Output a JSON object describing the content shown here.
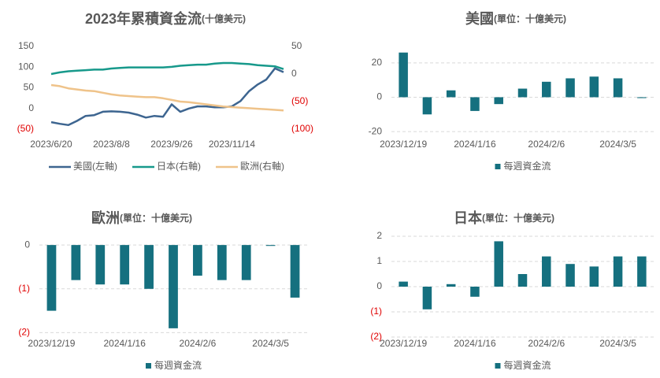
{
  "chart_data": [
    {
      "type": "line",
      "title": "2023年累積資金流",
      "subtitle": "(十億美元)",
      "categories": [
        "2023/6/20",
        null,
        null,
        null,
        null,
        null,
        null,
        "2023/8/8",
        null,
        null,
        null,
        null,
        null,
        null,
        "2023/9/26",
        null,
        null,
        null,
        null,
        null,
        null,
        "2023/11/14",
        null,
        null,
        null,
        null,
        null,
        null
      ],
      "series": [
        {
          "name": "美國(左軸)",
          "color": "#3d6590",
          "values": [
            -33,
            -37,
            -40,
            -30,
            -18,
            -16,
            -8,
            -7,
            -8,
            -10,
            -15,
            -22,
            -18,
            -20,
            10,
            -8,
            0,
            5,
            5,
            3,
            3,
            5,
            18,
            42,
            58,
            70,
            97,
            88
          ]
        },
        {
          "name": "日本(右軸)",
          "color": "#17998b",
          "axis": "y2",
          "values": [
            0,
            3,
            5,
            6,
            7,
            8,
            8,
            10,
            11,
            12,
            12,
            12,
            12,
            12,
            13,
            15,
            16,
            17,
            17,
            19,
            20,
            20,
            19,
            18,
            16,
            15,
            14,
            9
          ]
        },
        {
          "name": "歐洲(右軸)",
          "color": "#efc38a",
          "axis": "y2",
          "values": [
            -20,
            -22,
            -26,
            -28,
            -30,
            -31,
            -34,
            -37,
            -39,
            -40,
            -41,
            -42,
            -42,
            -44,
            -47,
            -50,
            -51,
            -53,
            -55,
            -57,
            -59,
            -60,
            -61,
            -62,
            -63,
            -64,
            -65,
            -66
          ]
        }
      ],
      "ylim": [
        -50,
        150
      ],
      "yticks": [
        {
          "value": -50,
          "label": "(50)"
        },
        0,
        50,
        100,
        150
      ],
      "y2lim": [
        -100,
        50
      ],
      "y2ticks": [
        {
          "value": -100,
          "label": "(100)"
        },
        {
          "value": -50,
          "label": "(50)"
        },
        0,
        50
      ],
      "negative_tick_color": "#e00000",
      "grid": false
    },
    {
      "type": "bar",
      "title": "美國",
      "subtitle": "(單位：十億美元)",
      "categories": [
        "2023/12/19",
        null,
        null,
        "2024/1/16",
        null,
        null,
        "2024/2/6",
        null,
        null,
        "2024/3/5",
        null
      ],
      "series": [
        {
          "name": "每週資金流",
          "color": "#15707f",
          "values": [
            26,
            -10,
            4,
            -8,
            -4,
            5,
            9,
            11,
            12,
            11,
            -0.5
          ]
        }
      ],
      "ylim": [
        -25,
        30
      ],
      "yticks": [
        -20,
        0,
        20
      ],
      "grid": true
    },
    {
      "type": "bar",
      "title": "歐洲",
      "subtitle": "(單位：十億美元)",
      "categories": [
        "2023/12/19",
        null,
        null,
        "2024/1/16",
        null,
        null,
        "2024/2/6",
        null,
        null,
        "2024/3/5",
        null
      ],
      "series": [
        {
          "name": "每週資金流",
          "color": "#15707f",
          "values": [
            -1.5,
            -0.8,
            -0.9,
            -0.9,
            -1.0,
            -1.9,
            -0.7,
            -0.8,
            -0.8,
            -0.02,
            -1.2
          ]
        }
      ],
      "ylim": [
        -2.1,
        0.2
      ],
      "yticks": [
        {
          "value": -2,
          "label": "(2)"
        },
        {
          "value": -1,
          "label": "(1)"
        },
        0
      ],
      "negative_tick_color": "#e00000",
      "grid": true
    },
    {
      "type": "bar",
      "title": "日本",
      "subtitle": "(單位：十億美元)",
      "categories": [
        "2023/12/19",
        null,
        null,
        "2024/1/16",
        null,
        null,
        "2024/2/6",
        null,
        null,
        "2024/3/5",
        null
      ],
      "series": [
        {
          "name": "每週資金流",
          "color": "#15707f",
          "values": [
            0.2,
            -0.9,
            0.1,
            -0.4,
            1.8,
            0.5,
            1.2,
            0.9,
            0.8,
            1.2,
            1.2
          ]
        }
      ],
      "ylim": [
        -2,
        2
      ],
      "yticks": [
        {
          "value": -2,
          "label": "(2)"
        },
        {
          "value": -1,
          "label": "(1)"
        },
        0,
        1,
        2
      ],
      "negative_tick_color": "#e00000",
      "grid": true
    }
  ]
}
